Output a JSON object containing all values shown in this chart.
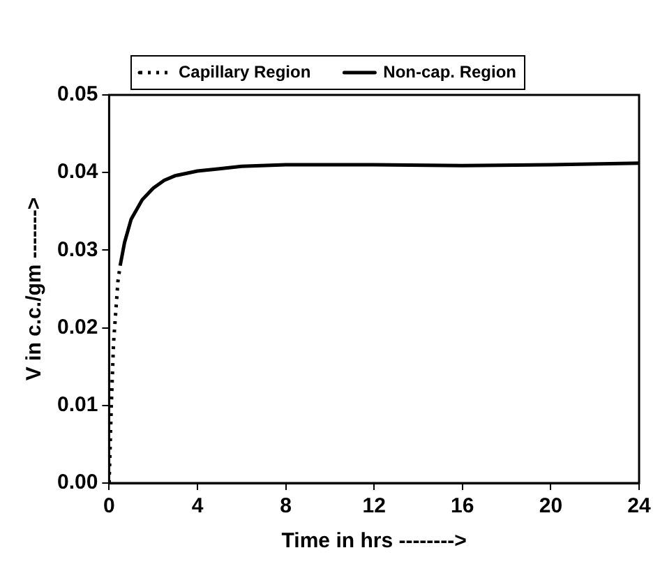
{
  "chart_data": {
    "type": "line",
    "xlabel": "Time in hrs -------->",
    "ylabel": "V in c.c./gm ------->",
    "xlim": [
      0,
      24
    ],
    "xticks": [
      0,
      4,
      8,
      12,
      16,
      20,
      24
    ],
    "ylim": [
      0,
      0.05
    ],
    "yticks": [
      {
        "value": 0,
        "label": "0.00"
      },
      {
        "value": 0.01,
        "label": "0.01"
      },
      {
        "value": 0.02,
        "label": "0.02"
      },
      {
        "value": 0.03,
        "label": "0.03"
      },
      {
        "value": 0.04,
        "label": "0.04"
      },
      {
        "value": 0.05,
        "label": "0.05"
      }
    ],
    "legend": "top",
    "marker": "none",
    "series": [
      {
        "name": "Capillary Region",
        "color": "#000000",
        "line_style": "dotted",
        "x": [
          0,
          0.05,
          0.1,
          0.15,
          0.2,
          0.3,
          0.4,
          0.5
        ],
        "values": [
          0,
          0.005,
          0.01,
          0.014,
          0.018,
          0.022,
          0.026,
          0.028
        ]
      },
      {
        "name": "Non-cap. Region",
        "color": "#000000",
        "line_style": "solid",
        "x": [
          0.5,
          0.7,
          1,
          1.5,
          2,
          2.5,
          3,
          4,
          5,
          6,
          8,
          12,
          16,
          20,
          24
        ],
        "values": [
          0.028,
          0.031,
          0.034,
          0.0365,
          0.038,
          0.039,
          0.0396,
          0.0402,
          0.0405,
          0.0408,
          0.041,
          0.041,
          0.0409,
          0.041,
          0.0412
        ]
      }
    ]
  }
}
